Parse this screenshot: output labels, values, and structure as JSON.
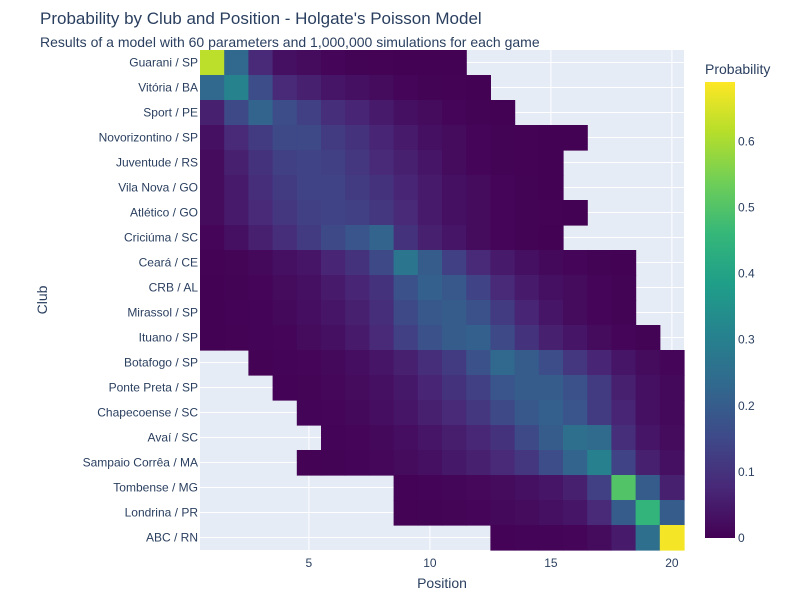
{
  "chart_data": {
    "type": "heatmap",
    "title": "Probability by Club and Position - Holgate's Poisson Model",
    "subtitle": "Results of a model with 60 parameters and 1,000,000 simulations for each game",
    "xlabel": "Position",
    "ylabel": "Club",
    "colorbar_title": "Probability",
    "colorscale": "viridis",
    "zlim": [
      0,
      0.69
    ],
    "x_ticks": [
      5,
      10,
      15,
      20
    ],
    "colorbar_ticks": [
      0,
      0.1,
      0.2,
      0.3,
      0.4,
      0.5,
      0.6
    ],
    "x_range": [
      0.5,
      20.5
    ],
    "positions": [
      1,
      2,
      3,
      4,
      5,
      6,
      7,
      8,
      9,
      10,
      11,
      12,
      13,
      14,
      15,
      16,
      17,
      18,
      19,
      20
    ],
    "clubs": [
      "Guarani / SP",
      "Vitória / BA",
      "Sport / PE",
      "Novorizontino / SP",
      "Juventude / RS",
      "Vila Nova / GO",
      "Atlético / GO",
      "Criciúma / SC",
      "Ceará / CE",
      "CRB / AL",
      "Mirassol / SP",
      "Ituano / SP",
      "Botafogo / SP",
      "Ponte Preta / SP",
      "Chapecoense / SC",
      "Avaí / SC",
      "Sampaio Corrêa / MA",
      "Tombense / MG",
      "Londrina / PR",
      "ABC / RN"
    ],
    "z": [
      [
        0.62,
        0.23,
        0.08,
        0.03,
        0.02,
        0.01,
        0.005,
        0.003,
        0.002,
        0.001,
        0.001,
        null,
        null,
        null,
        null,
        null,
        null,
        null,
        null,
        null
      ],
      [
        0.23,
        0.31,
        0.16,
        0.08,
        0.06,
        0.04,
        0.03,
        0.02,
        0.01,
        0.005,
        0.003,
        0.002,
        null,
        null,
        null,
        null,
        null,
        null,
        null,
        null
      ],
      [
        0.06,
        0.15,
        0.22,
        0.16,
        0.13,
        0.09,
        0.07,
        0.05,
        0.03,
        0.02,
        0.01,
        0.005,
        0.002,
        null,
        null,
        null,
        null,
        null,
        null,
        null
      ],
      [
        0.03,
        0.08,
        0.12,
        0.15,
        0.15,
        0.12,
        0.1,
        0.07,
        0.05,
        0.03,
        0.02,
        0.01,
        0.005,
        0.003,
        0.002,
        0.001,
        null,
        null,
        null,
        null
      ],
      [
        0.02,
        0.06,
        0.1,
        0.13,
        0.14,
        0.13,
        0.11,
        0.08,
        0.06,
        0.04,
        0.02,
        0.01,
        0.005,
        0.003,
        0.002,
        null,
        null,
        null,
        null,
        null
      ],
      [
        0.02,
        0.05,
        0.09,
        0.12,
        0.14,
        0.14,
        0.12,
        0.1,
        0.07,
        0.05,
        0.03,
        0.02,
        0.01,
        0.005,
        0.002,
        null,
        null,
        null,
        null,
        null
      ],
      [
        0.02,
        0.05,
        0.08,
        0.11,
        0.13,
        0.14,
        0.13,
        0.11,
        0.08,
        0.05,
        0.03,
        0.02,
        0.01,
        0.005,
        0.003,
        0.001,
        null,
        null,
        null,
        null
      ],
      [
        0.01,
        0.03,
        0.06,
        0.09,
        0.12,
        0.15,
        0.18,
        0.22,
        0.1,
        0.06,
        0.04,
        0.02,
        0.01,
        0.005,
        0.002,
        null,
        null,
        null,
        null,
        null
      ],
      [
        0.003,
        0.007,
        0.015,
        0.03,
        0.04,
        0.07,
        0.1,
        0.15,
        0.27,
        0.2,
        0.13,
        0.08,
        0.05,
        0.03,
        0.015,
        0.01,
        0.005,
        0.002,
        null,
        null
      ],
      [
        0.002,
        0.005,
        0.01,
        0.02,
        0.03,
        0.05,
        0.07,
        0.1,
        0.17,
        0.21,
        0.19,
        0.14,
        0.08,
        0.05,
        0.03,
        0.02,
        0.01,
        0.005,
        null,
        null
      ],
      [
        0.002,
        0.004,
        0.008,
        0.015,
        0.025,
        0.04,
        0.06,
        0.09,
        0.15,
        0.19,
        0.2,
        0.17,
        0.12,
        0.07,
        0.04,
        0.02,
        0.01,
        0.005,
        null,
        null
      ],
      [
        0.001,
        0.003,
        0.006,
        0.01,
        0.02,
        0.03,
        0.05,
        0.08,
        0.13,
        0.17,
        0.2,
        0.21,
        0.15,
        0.1,
        0.06,
        0.04,
        0.02,
        0.01,
        0.005,
        null
      ],
      [
        null,
        null,
        0.003,
        0.006,
        0.01,
        0.015,
        0.025,
        0.04,
        0.06,
        0.09,
        0.12,
        0.17,
        0.23,
        0.2,
        0.16,
        0.11,
        0.07,
        0.04,
        0.02,
        0.01
      ],
      [
        null,
        null,
        null,
        0.004,
        0.007,
        0.012,
        0.02,
        0.03,
        0.045,
        0.07,
        0.1,
        0.13,
        0.18,
        0.2,
        0.2,
        0.17,
        0.12,
        0.06,
        0.03,
        0.015
      ],
      [
        null,
        null,
        null,
        null,
        0.006,
        0.01,
        0.015,
        0.025,
        0.04,
        0.06,
        0.08,
        0.11,
        0.15,
        0.19,
        0.21,
        0.18,
        0.12,
        0.07,
        0.03,
        0.015
      ],
      [
        null,
        null,
        null,
        null,
        null,
        0.006,
        0.01,
        0.015,
        0.025,
        0.04,
        0.055,
        0.075,
        0.1,
        0.15,
        0.2,
        0.25,
        0.24,
        0.09,
        0.04,
        0.02
      ],
      [
        null,
        null,
        null,
        null,
        0.003,
        0.005,
        0.008,
        0.012,
        0.02,
        0.03,
        0.045,
        0.06,
        0.08,
        0.11,
        0.16,
        0.22,
        0.3,
        0.14,
        0.06,
        0.03
      ],
      [
        null,
        null,
        null,
        null,
        null,
        null,
        null,
        null,
        0.004,
        0.006,
        0.009,
        0.013,
        0.02,
        0.03,
        0.04,
        0.06,
        0.13,
        0.5,
        0.2,
        0.06
      ],
      [
        null,
        null,
        null,
        null,
        null,
        null,
        null,
        null,
        0.003,
        0.005,
        0.007,
        0.01,
        0.015,
        0.02,
        0.03,
        0.04,
        0.08,
        0.2,
        0.45,
        0.2
      ],
      [
        null,
        null,
        null,
        null,
        null,
        null,
        null,
        null,
        null,
        null,
        null,
        null,
        0.004,
        0.006,
        0.008,
        0.01,
        0.02,
        0.05,
        0.25,
        0.68
      ]
    ]
  }
}
